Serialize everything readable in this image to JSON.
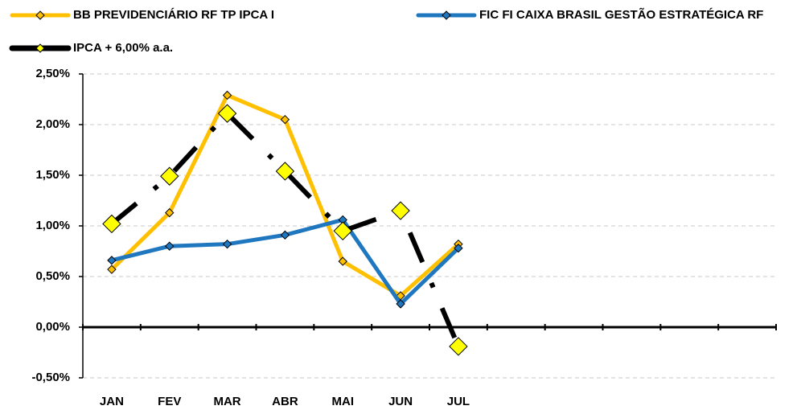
{
  "chart_data": {
    "type": "line",
    "categories": [
      "JAN",
      "FEV",
      "MAR",
      "ABR",
      "MAI",
      "JUN",
      "JUL",
      null,
      null,
      null,
      null,
      null
    ],
    "series": [
      {
        "name": "BB PREVIDENCIÁRIO RF TP IPCA I",
        "color": "#ffc000",
        "marker_color": "#ffc000",
        "marker_size": "small",
        "line_style": "solid",
        "values": [
          0.57,
          1.13,
          2.29,
          2.05,
          0.65,
          0.31,
          0.82,
          null,
          null,
          null,
          null,
          null
        ]
      },
      {
        "name": "FIC FI CAIXA BRASIL GESTÃO ESTRATÉGICA RF",
        "color": "#1f77c0",
        "marker_color": "#1f77c0",
        "marker_size": "small",
        "line_style": "solid",
        "values": [
          0.66,
          0.8,
          0.82,
          0.91,
          1.06,
          0.23,
          0.78,
          null,
          null,
          null,
          null,
          null
        ]
      },
      {
        "name": "IPCA + 6,00% a.a.",
        "color": "#000000",
        "marker_color": "#ffff00",
        "marker_size": "large",
        "line_style": "dashed",
        "values": [
          1.02,
          1.49,
          2.11,
          1.54,
          0.95,
          1.15,
          -0.19,
          null,
          null,
          null,
          null,
          null
        ]
      }
    ],
    "ylim": [
      -0.5,
      2.5
    ],
    "yticks": [
      {
        "value": -0.5,
        "label": "-0,50%"
      },
      {
        "value": 0,
        "label": "0,00%"
      },
      {
        "value": 0.5,
        "label": "0,50%"
      },
      {
        "value": 1,
        "label": "1,00%"
      },
      {
        "value": 1.5,
        "label": "1,50%"
      },
      {
        "value": 2,
        "label": "2,00%"
      },
      {
        "value": 2.5,
        "label": "2,50%"
      }
    ],
    "grid": true,
    "legend": "top"
  }
}
